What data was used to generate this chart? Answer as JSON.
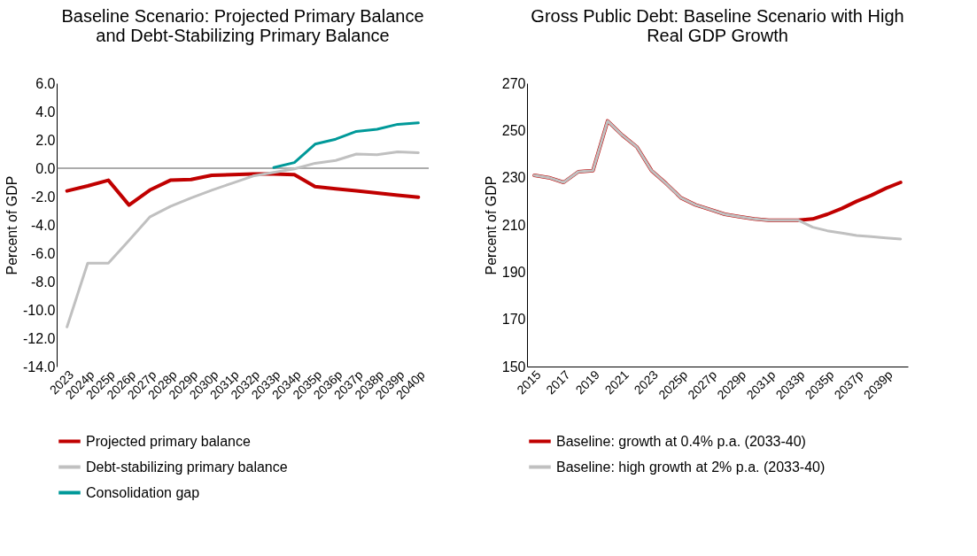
{
  "chart_data": [
    {
      "type": "line",
      "title": "Baseline Scenario: Projected Primary Balance and Debt-Stabilizing Primary Balance",
      "ylabel": "Percent of GDP",
      "categories": [
        "2023",
        "2024p",
        "2025p",
        "2026p",
        "2027p",
        "2028p",
        "2029p",
        "2030p",
        "2031p",
        "2032p",
        "2033p",
        "2034p",
        "2035p",
        "2036p",
        "2037p",
        "2038p",
        "2039p",
        "2040p"
      ],
      "series": [
        {
          "name": "Projected primary balance",
          "color": "#c00000",
          "values": [
            -1.6,
            -1.25,
            -0.85,
            -2.6,
            -1.55,
            -0.85,
            -0.8,
            -0.5,
            -0.45,
            -0.4,
            -0.4,
            -0.45,
            -1.3,
            -1.45,
            -1.6,
            -1.75,
            -1.9,
            -2.05
          ]
        },
        {
          "name": "Debt-stabilizing primary balance",
          "color": "#c0c0c0",
          "values": [
            -11.2,
            -6.7,
            -6.7,
            -5.1,
            -3.45,
            -2.7,
            -2.1,
            -1.55,
            -1.05,
            -0.55,
            -0.3,
            -0.05,
            0.35,
            0.55,
            1.0,
            0.95,
            1.15,
            1.1
          ]
        },
        {
          "name": "Consolidation gap",
          "color": "#009999",
          "values": [
            null,
            null,
            null,
            null,
            null,
            null,
            null,
            null,
            null,
            null,
            0.05,
            0.4,
            1.7,
            2.05,
            2.6,
            2.75,
            3.1,
            3.2
          ]
        }
      ],
      "ylim": [
        -14,
        6
      ],
      "yticks": [
        {
          "value": -14,
          "label": "-14.0"
        },
        {
          "value": -12,
          "label": "-12.0"
        },
        {
          "value": -10,
          "label": "-10.0"
        },
        {
          "value": -8,
          "label": "-8.0"
        },
        {
          "value": -6,
          "label": "-6.0"
        },
        {
          "value": -4,
          "label": "-4.0"
        },
        {
          "value": -2,
          "label": "-2.0"
        },
        {
          "value": 0,
          "label": "0.0"
        },
        {
          "value": 2,
          "label": "2.0"
        },
        {
          "value": 4,
          "label": "4.0"
        },
        {
          "value": 6,
          "label": "6.0"
        }
      ],
      "ref_lines": [
        {
          "axis": "y",
          "value": 0,
          "color": "#595959"
        }
      ],
      "grid": false,
      "legend": "bottom",
      "marker": "none",
      "line_style": "solid"
    },
    {
      "type": "line",
      "title": "Gross Public Debt: Baseline Scenario with High Real GDP Growth",
      "ylabel": "Percent of GDP",
      "categories": [
        "2015",
        null,
        "2017",
        null,
        "2019",
        null,
        "2021",
        null,
        "2023",
        null,
        "2025p",
        null,
        "2027p",
        null,
        "2029p",
        null,
        "2031p",
        null,
        "2033p",
        null,
        "2035p",
        null,
        "2037p",
        null,
        "2039p",
        null
      ],
      "series": [
        {
          "name": "Baseline: growth at 0.4% p.a. (2033-40)",
          "color": "#c00000",
          "values": [
            231,
            230,
            228,
            232.5,
            233,
            254,
            248,
            243,
            233,
            227.5,
            221.5,
            218.5,
            216.5,
            214.5,
            213.5,
            212.5,
            212,
            212,
            212,
            212.5,
            214.5,
            217,
            220,
            222.5,
            225.5,
            228
          ]
        },
        {
          "name": "Baseline: high growth at 2% p.a. (2033-40)",
          "color": "#c0c0c0",
          "values": [
            231,
            230,
            228,
            232.5,
            233,
            254,
            248,
            243,
            233,
            227.5,
            221.5,
            218.5,
            216.5,
            214.5,
            213.5,
            212.5,
            212,
            212,
            212,
            209,
            207.5,
            206.5,
            205.5,
            205,
            204.5,
            204
          ]
        }
      ],
      "ylim": [
        150,
        270
      ],
      "yticks": [
        150,
        170,
        190,
        210,
        230,
        250,
        270
      ],
      "grid": false,
      "legend": "bottom",
      "marker": "none",
      "line_style": "solid"
    }
  ]
}
